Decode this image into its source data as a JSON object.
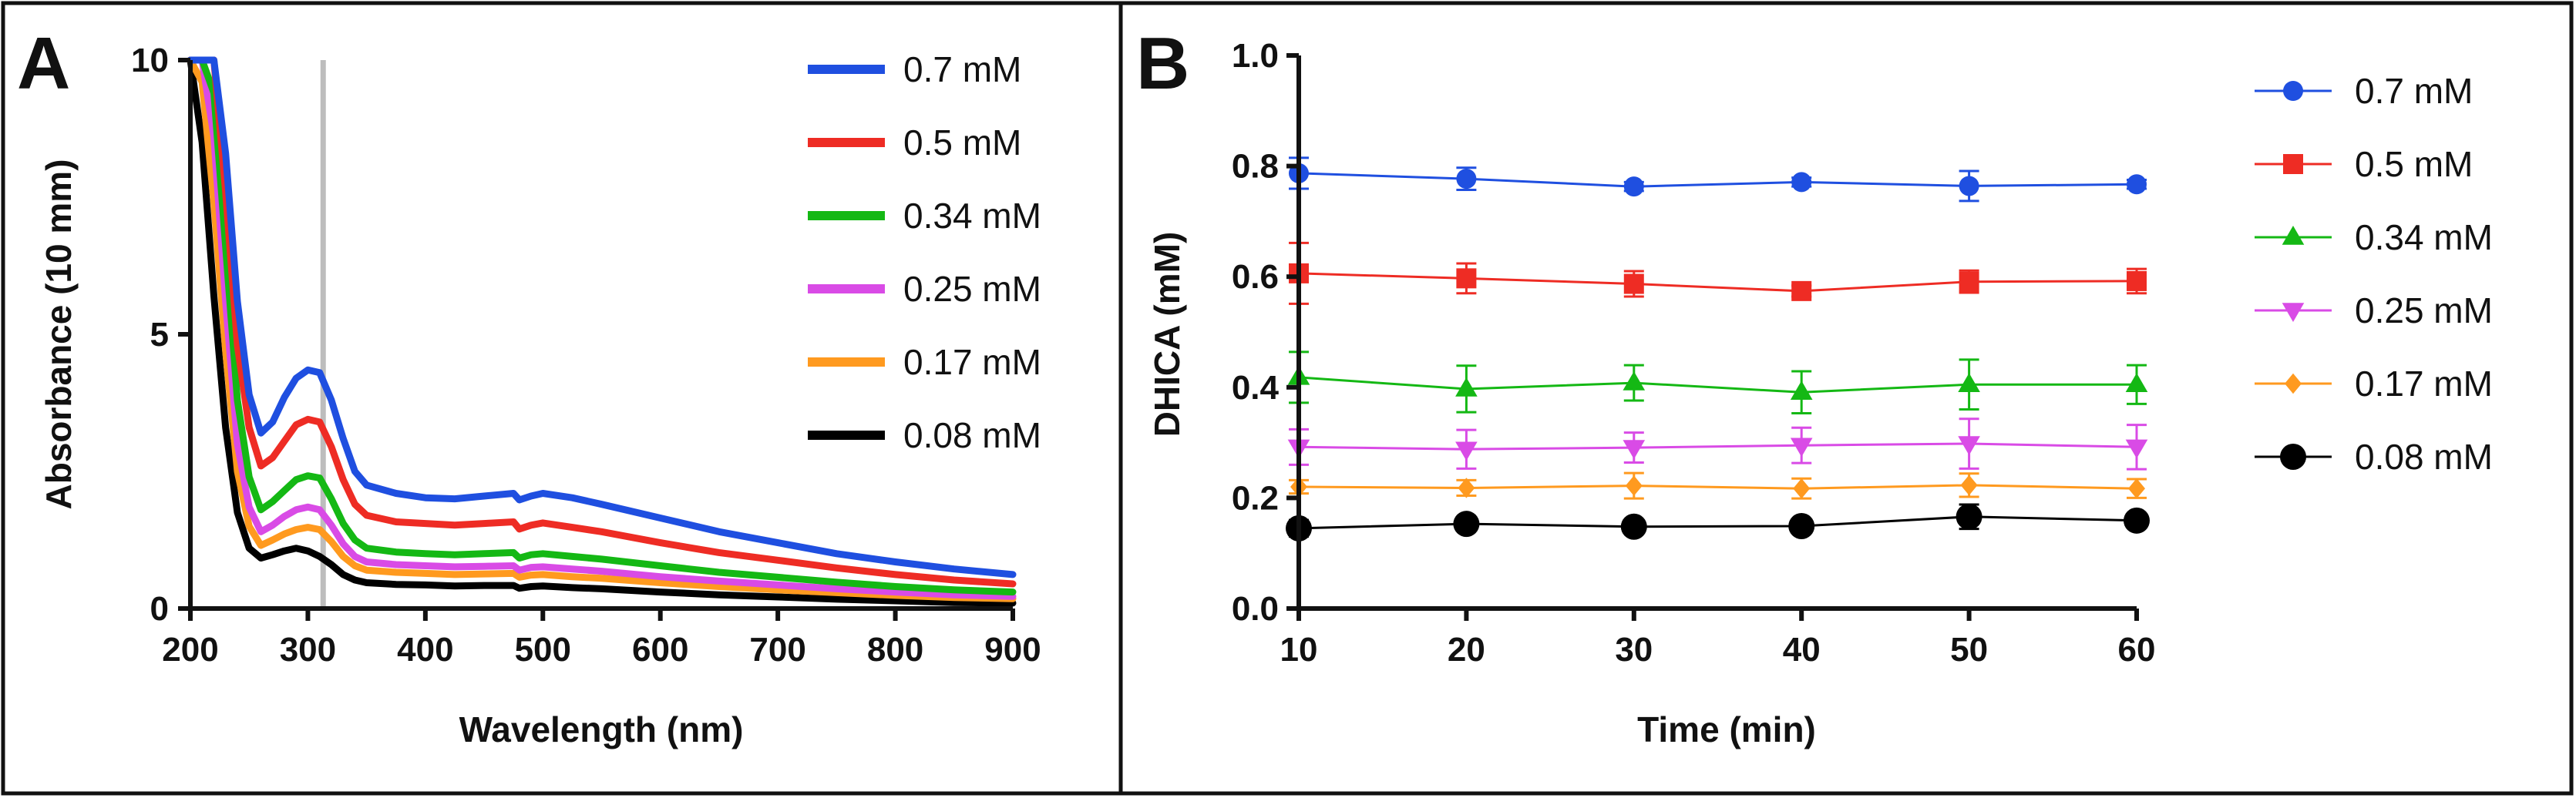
{
  "chart_data": [
    {
      "panel_label": "A",
      "type": "line",
      "xlabel": "Wavelength (nm)",
      "ylabel": "Absorbance (10 mm)",
      "xlim": [
        200,
        900
      ],
      "ylim": [
        0,
        10
      ],
      "xticks": [
        "200",
        "300",
        "400",
        "500",
        "600",
        "700",
        "800",
        "900"
      ],
      "yticks": [
        "0",
        "5",
        "10"
      ],
      "reference_line_x": 313,
      "reference_line_color": "#bdbdbd",
      "x": [
        200,
        210,
        220,
        230,
        240,
        250,
        260,
        270,
        280,
        290,
        300,
        310,
        320,
        330,
        340,
        350,
        375,
        400,
        425,
        450,
        475,
        480,
        490,
        500,
        525,
        550,
        600,
        650,
        700,
        750,
        800,
        850,
        900
      ],
      "series": [
        {
          "name": "0.7 mM",
          "color": "#1f4fe0",
          "values": [
            10,
            10,
            10,
            8.3,
            5.6,
            3.9,
            3.2,
            3.4,
            3.85,
            4.2,
            4.35,
            4.3,
            3.8,
            3.1,
            2.5,
            2.25,
            2.1,
            2.02,
            2.0,
            2.05,
            2.1,
            1.98,
            2.05,
            2.1,
            2.02,
            1.9,
            1.65,
            1.4,
            1.2,
            1.0,
            0.85,
            0.72,
            0.62
          ]
        },
        {
          "name": "0.5 mM",
          "color": "#ee2c24",
          "values": [
            10,
            10,
            10,
            7.6,
            4.8,
            3.3,
            2.6,
            2.75,
            3.05,
            3.35,
            3.45,
            3.4,
            2.95,
            2.35,
            1.9,
            1.7,
            1.58,
            1.55,
            1.52,
            1.55,
            1.58,
            1.45,
            1.52,
            1.56,
            1.48,
            1.4,
            1.2,
            1.02,
            0.88,
            0.74,
            0.62,
            0.52,
            0.45
          ]
        },
        {
          "name": "0.34 mM",
          "color": "#14b814",
          "values": [
            10,
            10,
            9.4,
            6.6,
            3.8,
            2.4,
            1.8,
            1.95,
            2.15,
            2.35,
            2.42,
            2.38,
            2.0,
            1.55,
            1.25,
            1.1,
            1.03,
            1.0,
            0.98,
            1.0,
            1.02,
            0.92,
            0.98,
            1.0,
            0.95,
            0.9,
            0.78,
            0.66,
            0.57,
            0.48,
            0.4,
            0.34,
            0.3
          ]
        },
        {
          "name": "0.25 mM",
          "color": "#d94be6",
          "values": [
            10,
            10,
            8.6,
            5.6,
            3.0,
            1.85,
            1.4,
            1.52,
            1.68,
            1.8,
            1.85,
            1.8,
            1.52,
            1.18,
            0.95,
            0.85,
            0.8,
            0.78,
            0.76,
            0.77,
            0.78,
            0.7,
            0.75,
            0.76,
            0.72,
            0.68,
            0.58,
            0.5,
            0.43,
            0.36,
            0.3,
            0.25,
            0.22
          ]
        },
        {
          "name": "0.17 mM",
          "color": "#ff9a1f",
          "values": [
            10,
            9.6,
            7.4,
            4.7,
            2.5,
            1.5,
            1.15,
            1.25,
            1.36,
            1.44,
            1.48,
            1.44,
            1.22,
            0.95,
            0.78,
            0.7,
            0.66,
            0.64,
            0.62,
            0.63,
            0.64,
            0.57,
            0.61,
            0.62,
            0.58,
            0.55,
            0.47,
            0.4,
            0.34,
            0.29,
            0.24,
            0.2,
            0.18
          ]
        },
        {
          "name": "0.08 mM",
          "color": "#000000",
          "values": [
            10,
            8.5,
            5.7,
            3.3,
            1.75,
            1.1,
            0.92,
            0.98,
            1.05,
            1.1,
            1.05,
            0.95,
            0.8,
            0.62,
            0.52,
            0.47,
            0.44,
            0.43,
            0.41,
            0.42,
            0.42,
            0.37,
            0.4,
            0.41,
            0.38,
            0.36,
            0.3,
            0.25,
            0.21,
            0.17,
            0.14,
            0.11,
            0.1
          ]
        }
      ]
    },
    {
      "panel_label": "B",
      "type": "scatter",
      "xlabel": "Time (min)",
      "ylabel": "DHICA (mM)",
      "xlim": [
        10,
        60
      ],
      "ylim": [
        0,
        1.0
      ],
      "xticks": [
        "10",
        "20",
        "30",
        "40",
        "50",
        "60"
      ],
      "yticks": [
        "0.0",
        "0.2",
        "0.4",
        "0.6",
        "0.8",
        "1.0"
      ],
      "x": [
        10,
        20,
        30,
        40,
        50,
        60
      ],
      "series": [
        {
          "name": "0.7 mM",
          "color": "#1f4fe0",
          "marker": "circle",
          "values": [
            0.787,
            0.777,
            0.763,
            0.771,
            0.764,
            0.767
          ],
          "errors": [
            0.028,
            0.02,
            0.008,
            0.008,
            0.027,
            0.008
          ]
        },
        {
          "name": "0.5 mM",
          "color": "#ee2c24",
          "marker": "square",
          "values": [
            0.606,
            0.597,
            0.587,
            0.574,
            0.591,
            0.592
          ],
          "errors": [
            0.055,
            0.027,
            0.023,
            0.01,
            0.02,
            0.022
          ]
        },
        {
          "name": "0.34 mM",
          "color": "#14b814",
          "marker": "triangle-up",
          "values": [
            0.418,
            0.397,
            0.408,
            0.391,
            0.405,
            0.405
          ],
          "errors": [
            0.046,
            0.042,
            0.032,
            0.038,
            0.045,
            0.035
          ]
        },
        {
          "name": "0.25 mM",
          "color": "#d94be6",
          "marker": "triangle-down",
          "values": [
            0.292,
            0.288,
            0.291,
            0.295,
            0.298,
            0.292
          ],
          "errors": [
            0.032,
            0.035,
            0.027,
            0.032,
            0.045,
            0.04
          ]
        },
        {
          "name": "0.17 mM",
          "color": "#ff9a1f",
          "marker": "diamond",
          "values": [
            0.22,
            0.218,
            0.222,
            0.217,
            0.223,
            0.217
          ],
          "errors": [
            0.012,
            0.014,
            0.023,
            0.018,
            0.021,
            0.017
          ]
        },
        {
          "name": "0.08 mM",
          "color": "#000000",
          "marker": "circle",
          "values": [
            0.145,
            0.153,
            0.148,
            0.149,
            0.166,
            0.159
          ],
          "errors": [
            0.015,
            0.008,
            0.008,
            0.008,
            0.022,
            0.01
          ]
        }
      ]
    }
  ]
}
